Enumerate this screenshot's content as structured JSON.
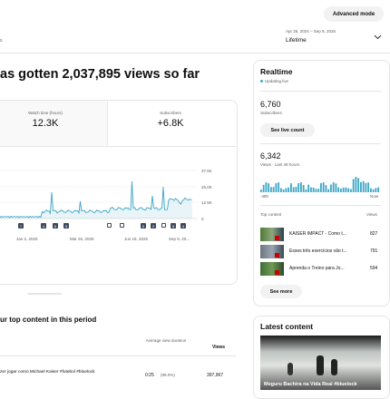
{
  "header": {
    "advanced_mode": "Advanced mode",
    "left_fragment": "s",
    "date_range": "Apr 26, 2024 – Sep 9, 2025",
    "period": "Lifetime"
  },
  "summary": {
    "headline": "as gotten 2,037,895 views so far",
    "metrics": [
      {
        "label": "Watch time (hours)",
        "value": "12.3K"
      },
      {
        "label": "Subscribers",
        "value": "+6.8K"
      }
    ],
    "chart": {
      "yticks": [
        "37.5K",
        "25.0K",
        "12.5K",
        "0"
      ],
      "xticks": [
        "Jan 2, 2025",
        "Mar 26, 2025",
        "Jun 18, 2025",
        "Sep 9, 20..."
      ],
      "markers": [
        "7",
        "4",
        "6",
        "5",
        "5",
        "2",
        "5",
        "4"
      ]
    }
  },
  "top_content": {
    "title": "ur top content in this period",
    "columns": [
      "Average view duration",
      "Views"
    ],
    "rows": [
      {
        "title": "zer jogar como Michael Kaiser #futebol #bluelock",
        "duration": "0:25",
        "percent": "(89.0%)",
        "views": "397,967"
      }
    ]
  },
  "realtime": {
    "title": "Realtime",
    "status": "Updating live",
    "subscribers": "6,760",
    "subscribers_label": "Subscribers",
    "live_count_button": "See live count",
    "views": "6,342",
    "views_label": "Views · Last 48 hours",
    "axis_start": "-48h",
    "axis_end": "Now",
    "top_content_label": "Top content",
    "views_column": "Views",
    "items": [
      {
        "title": "KAISER IMPACT - Como t...",
        "views": "827"
      },
      {
        "title": "Esses três exercícios vão t...",
        "views": "791"
      },
      {
        "title": "Aprenda o Treino para Jo...",
        "views": "594"
      }
    ],
    "see_more": "See more"
  },
  "latest": {
    "title": "Latest content",
    "video_caption": "Meguru Bachira na Vida Real #bluelock"
  }
}
